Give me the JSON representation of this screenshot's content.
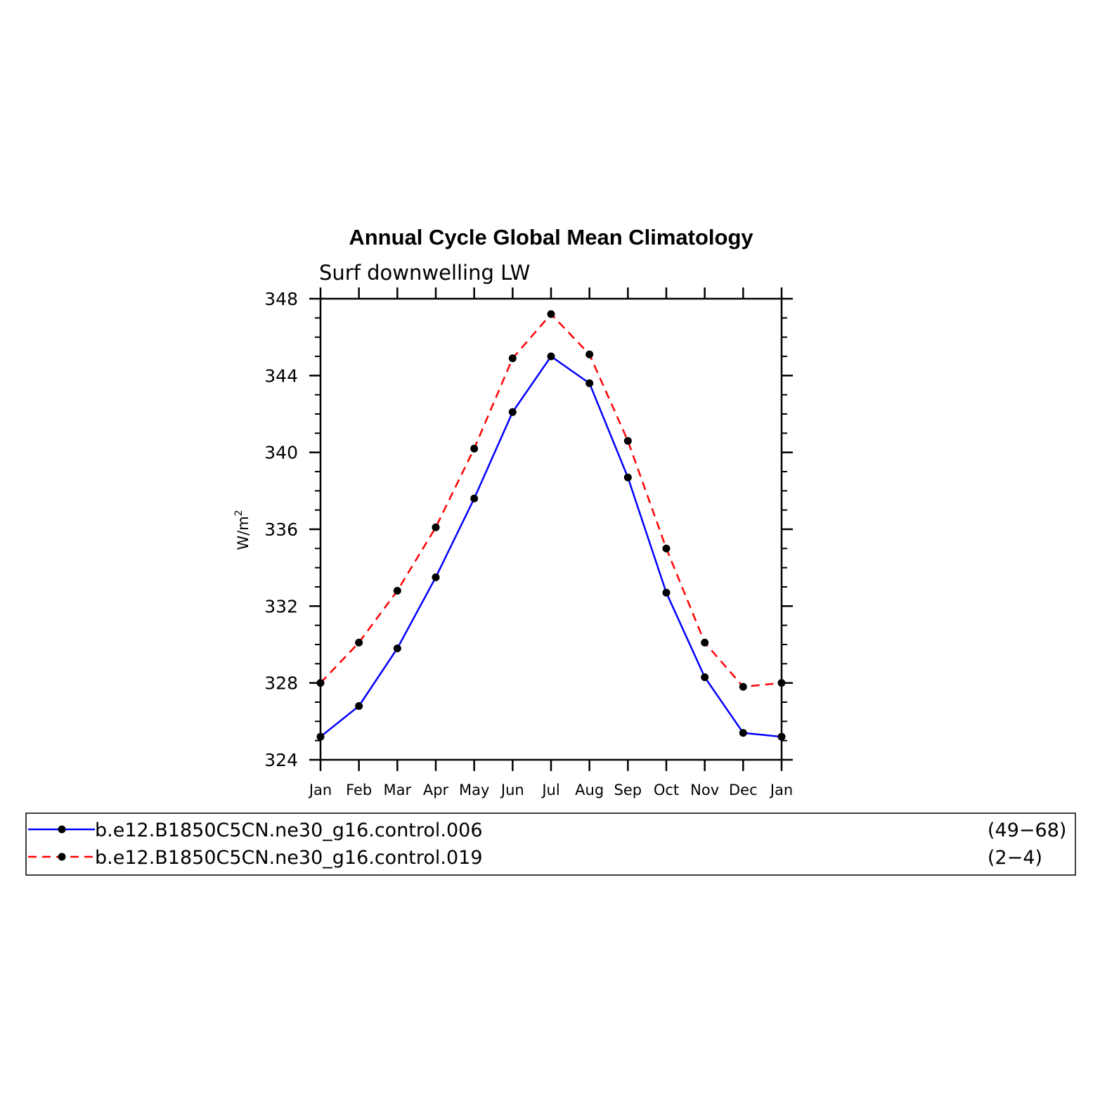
{
  "chart_data": {
    "type": "line",
    "title": "Annual Cycle Global Mean Climatology",
    "subtitle": "Surf downwelling LW",
    "ylabel": "W/m",
    "ylabel_superscript": "2",
    "xlabel": "",
    "ylim": [
      324,
      348
    ],
    "yticks": [
      324,
      328,
      332,
      336,
      340,
      344,
      348
    ],
    "ytick_labels": [
      "324",
      "328",
      "332",
      "336",
      "340",
      "344",
      "348"
    ],
    "categories": [
      "Jan",
      "Feb",
      "Mar",
      "Apr",
      "May",
      "Jun",
      "Jul",
      "Aug",
      "Sep",
      "Oct",
      "Nov",
      "Dec",
      "Jan"
    ],
    "grid": false,
    "legend_position": "bottom",
    "series": [
      {
        "name": "b.e12.B1850C5CN.ne30_g16.control.006",
        "years": "(49−68)",
        "color": "#0000ff",
        "line_style": "solid",
        "marker_color": "#000000",
        "values": [
          325.2,
          326.8,
          329.8,
          333.5,
          337.6,
          342.1,
          345.0,
          343.6,
          338.7,
          332.7,
          328.3,
          325.4,
          325.2
        ]
      },
      {
        "name": "b.e12.B1850C5CN.ne30_g16.control.019",
        "years": "(2−4)",
        "color": "#ff0000",
        "line_style": "dashed",
        "marker_color": "#000000",
        "values": [
          328.0,
          330.1,
          332.8,
          336.1,
          340.2,
          344.9,
          347.2,
          345.1,
          340.6,
          335.0,
          330.1,
          327.8,
          328.0
        ]
      }
    ]
  }
}
